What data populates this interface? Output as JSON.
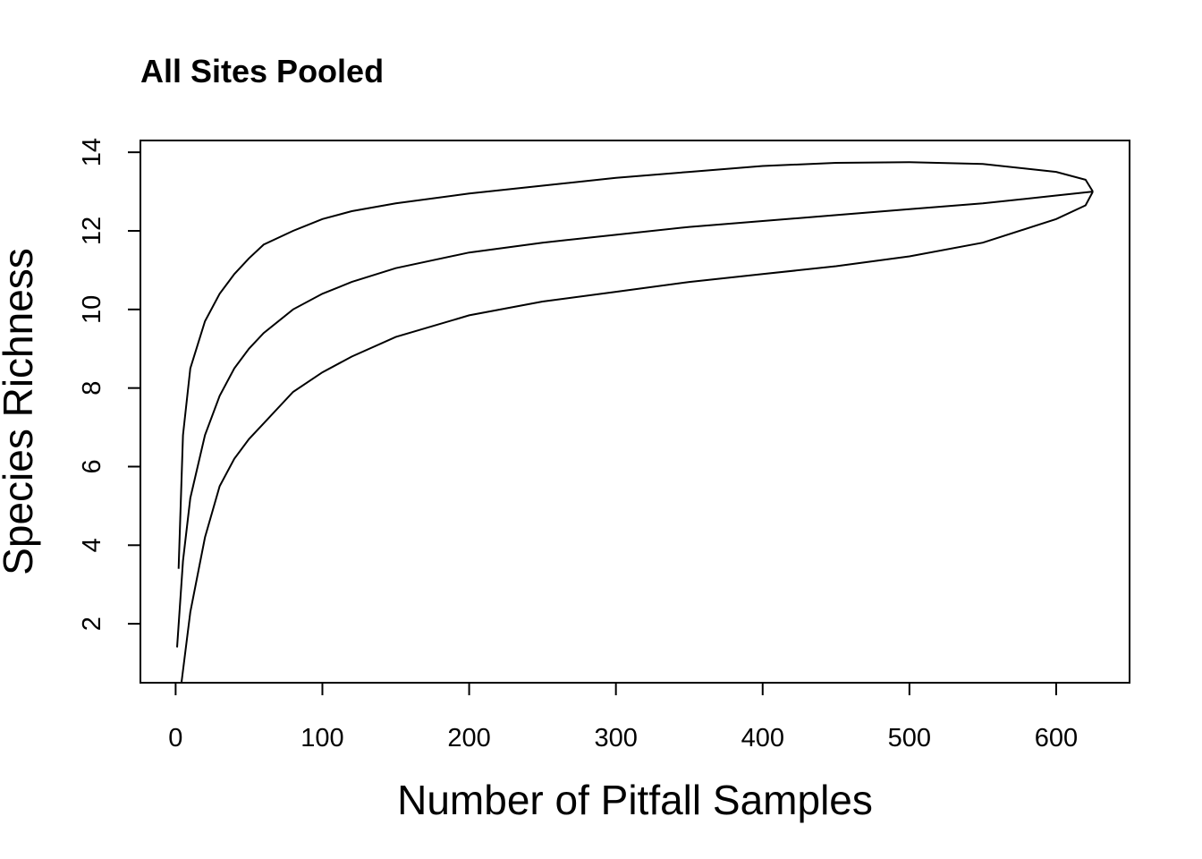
{
  "chart_data": {
    "type": "line",
    "title": "All Sites Pooled",
    "xlabel": "Number of Pitfall Samples",
    "ylabel": "Species Richness",
    "xlim": [
      -24,
      650
    ],
    "ylim": [
      0.5,
      14.3
    ],
    "xticks": [
      0,
      100,
      200,
      300,
      400,
      500,
      600
    ],
    "yticks": [
      2,
      4,
      6,
      8,
      10,
      12,
      14
    ],
    "grid": false,
    "series": [
      {
        "role": "mean",
        "x": [
          1,
          5,
          10,
          20,
          30,
          40,
          50,
          60,
          80,
          100,
          120,
          150,
          200,
          250,
          300,
          350,
          400,
          450,
          500,
          550,
          600,
          625
        ],
        "y": [
          1.4,
          3.6,
          5.2,
          6.8,
          7.8,
          8.5,
          9.0,
          9.4,
          10.0,
          10.4,
          10.7,
          11.05,
          11.45,
          11.7,
          11.9,
          12.1,
          12.25,
          12.4,
          12.55,
          12.7,
          12.9,
          13.0
        ]
      },
      {
        "role": "upper",
        "x": [
          2,
          5,
          10,
          20,
          30,
          40,
          50,
          60,
          80,
          100,
          120,
          150,
          200,
          250,
          300,
          350,
          400,
          450,
          500,
          550,
          600,
          620,
          625
        ],
        "y": [
          3.4,
          6.8,
          8.5,
          9.7,
          10.4,
          10.9,
          11.3,
          11.65,
          12.0,
          12.3,
          12.5,
          12.7,
          12.95,
          13.15,
          13.35,
          13.5,
          13.65,
          13.73,
          13.75,
          13.7,
          13.5,
          13.3,
          13.0
        ]
      },
      {
        "role": "lower",
        "x": [
          4,
          10,
          20,
          30,
          40,
          50,
          60,
          80,
          100,
          120,
          150,
          200,
          250,
          300,
          350,
          400,
          450,
          500,
          550,
          600,
          620,
          625
        ],
        "y": [
          0.5,
          2.3,
          4.2,
          5.5,
          6.2,
          6.7,
          7.1,
          7.9,
          8.4,
          8.8,
          9.3,
          9.85,
          10.2,
          10.45,
          10.7,
          10.9,
          11.1,
          11.35,
          11.7,
          12.3,
          12.65,
          13.0
        ]
      }
    ]
  }
}
